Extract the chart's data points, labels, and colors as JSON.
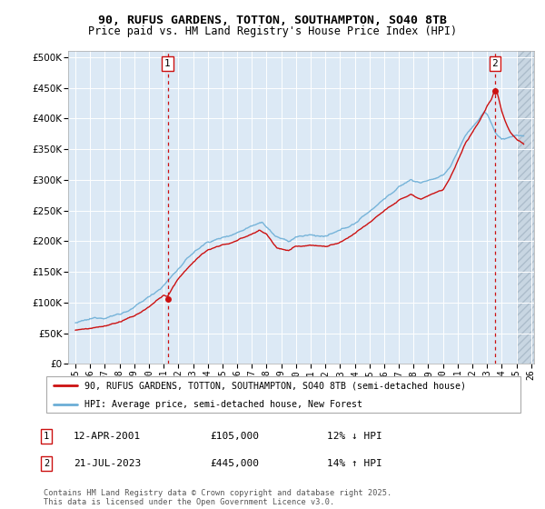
{
  "title": "90, RUFUS GARDENS, TOTTON, SOUTHAMPTON, SO40 8TB",
  "subtitle": "Price paid vs. HM Land Registry's House Price Index (HPI)",
  "legend_line1": "90, RUFUS GARDENS, TOTTON, SOUTHAMPTON, SO40 8TB (semi-detached house)",
  "legend_line2": "HPI: Average price, semi-detached house, New Forest",
  "annotation1": {
    "label": "1",
    "date_str": "12-APR-2001",
    "price": "£105,000",
    "pct": "12% ↓ HPI"
  },
  "annotation2": {
    "label": "2",
    "date_str": "21-JUL-2023",
    "price": "£445,000",
    "pct": "14% ↑ HPI"
  },
  "footer": "Contains HM Land Registry data © Crown copyright and database right 2025.\nThis data is licensed under the Open Government Licence v3.0.",
  "sale1_x": 2001.27,
  "sale1_y": 105000,
  "sale2_x": 2023.54,
  "sale2_y": 445000,
  "hpi_color": "#6baed6",
  "price_color": "#cc1111",
  "vline_color": "#cc1111",
  "plot_bg": "#dce9f5",
  "grid_color": "#ffffff",
  "ylim": [
    0,
    510000
  ],
  "xlim": [
    1994.5,
    2026.2
  ],
  "yticks": [
    0,
    50000,
    100000,
    150000,
    200000,
    250000,
    300000,
    350000,
    400000,
    450000,
    500000
  ],
  "xticks": [
    1995,
    1996,
    1997,
    1998,
    1999,
    2000,
    2001,
    2002,
    2003,
    2004,
    2005,
    2006,
    2007,
    2008,
    2009,
    2010,
    2011,
    2012,
    2013,
    2014,
    2015,
    2016,
    2017,
    2018,
    2019,
    2020,
    2021,
    2022,
    2023,
    2024,
    2025,
    2026
  ]
}
